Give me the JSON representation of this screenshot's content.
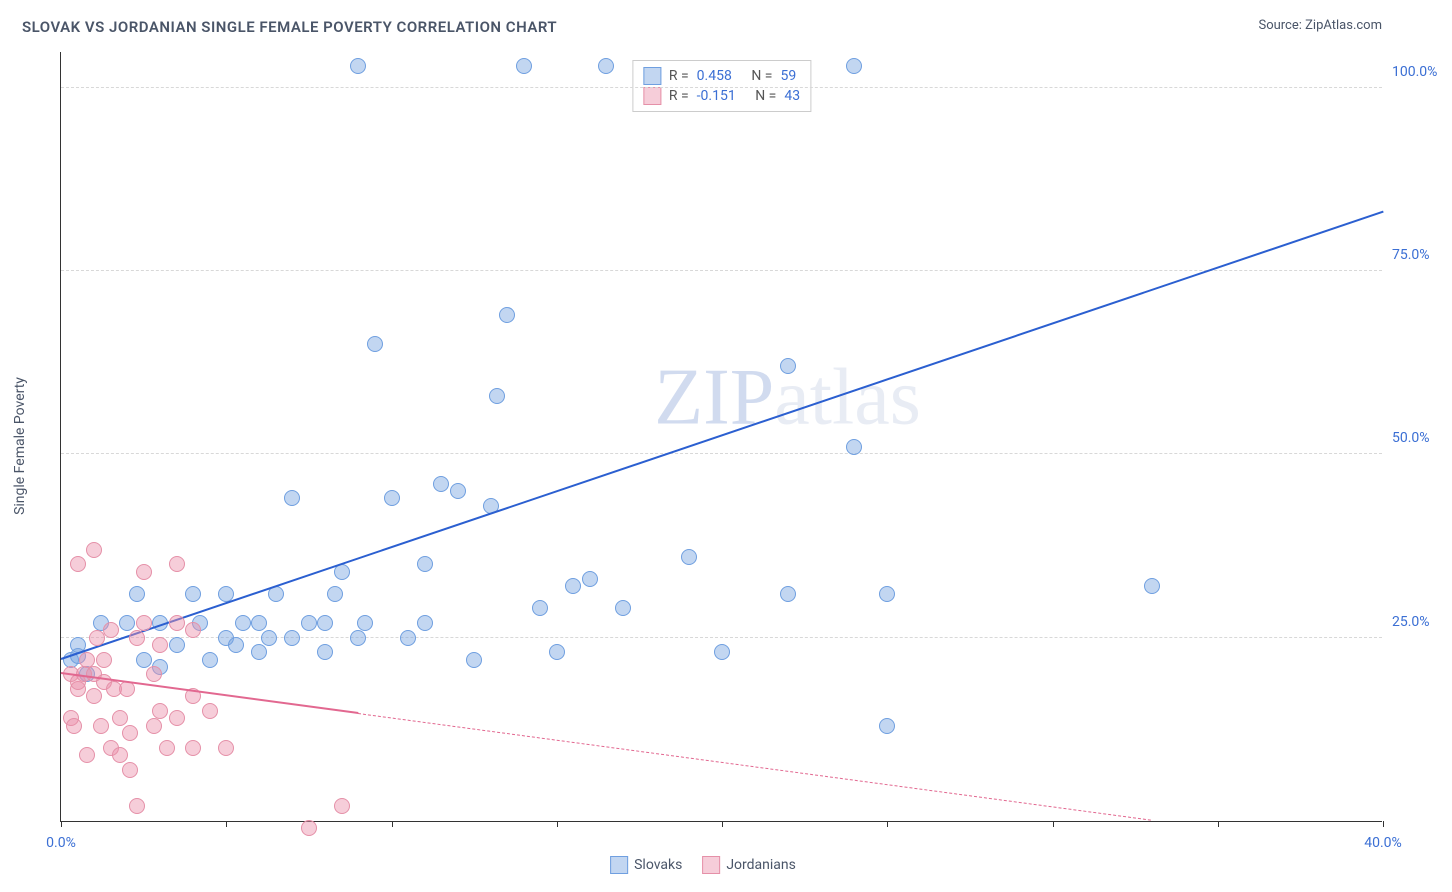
{
  "title": "SLOVAK VS JORDANIAN SINGLE FEMALE POVERTY CORRELATION CHART",
  "source_label": "Source: ",
  "source_value": "ZipAtlas.com",
  "y_axis_title": "Single Female Poverty",
  "watermark_a": "ZIP",
  "watermark_b": "atlas",
  "chart": {
    "type": "scatter",
    "xlim": [
      0,
      40
    ],
    "ylim": [
      0,
      105
    ],
    "x_ticks_major": [
      0,
      40
    ],
    "x_ticks_minor": [
      5,
      10,
      15,
      20,
      25,
      30,
      35
    ],
    "x_tick_labels": {
      "0": "0.0%",
      "40": "40.0%"
    },
    "y_ticks": [
      25,
      50,
      75,
      100
    ],
    "y_tick_labels": {
      "25": "25.0%",
      "50": "50.0%",
      "75": "75.0%",
      "100": "100.0%"
    },
    "grid_color": "#d8d8d8",
    "background_color": "#ffffff",
    "axis_color": "#333333",
    "point_radius": 8,
    "series": [
      {
        "name": "Slovaks",
        "color_fill": "rgba(120,165,225,0.45)",
        "color_stroke": "#6f9fe0",
        "trend_color": "#2b5fd0",
        "trend_start": {
          "x": 0,
          "y": 22
        },
        "trend_end": {
          "x": 40,
          "y": 83
        },
        "trend_dashed_from": null,
        "R_label": "R = ",
        "R": "0.458",
        "N_label": "N = ",
        "N": "59",
        "points": [
          {
            "x": 0.3,
            "y": 22
          },
          {
            "x": 0.5,
            "y": 22.5
          },
          {
            "x": 0.5,
            "y": 24
          },
          {
            "x": 0.8,
            "y": 20
          },
          {
            "x": 1.2,
            "y": 27
          },
          {
            "x": 2.0,
            "y": 27
          },
          {
            "x": 2.3,
            "y": 31
          },
          {
            "x": 2.5,
            "y": 22
          },
          {
            "x": 3.0,
            "y": 21
          },
          {
            "x": 3.0,
            "y": 27
          },
          {
            "x": 3.5,
            "y": 24
          },
          {
            "x": 4.0,
            "y": 31
          },
          {
            "x": 4.2,
            "y": 27
          },
          {
            "x": 4.5,
            "y": 22
          },
          {
            "x": 5.0,
            "y": 25
          },
          {
            "x": 5.0,
            "y": 31
          },
          {
            "x": 5.3,
            "y": 24
          },
          {
            "x": 5.5,
            "y": 27
          },
          {
            "x": 6.0,
            "y": 23
          },
          {
            "x": 6.0,
            "y": 27
          },
          {
            "x": 6.3,
            "y": 25
          },
          {
            "x": 6.5,
            "y": 31
          },
          {
            "x": 7.0,
            "y": 44
          },
          {
            "x": 7.0,
            "y": 25
          },
          {
            "x": 7.5,
            "y": 27
          },
          {
            "x": 8.0,
            "y": 23
          },
          {
            "x": 8.0,
            "y": 27
          },
          {
            "x": 8.3,
            "y": 31
          },
          {
            "x": 8.5,
            "y": 34
          },
          {
            "x": 9.0,
            "y": 103
          },
          {
            "x": 9.0,
            "y": 25
          },
          {
            "x": 9.2,
            "y": 27
          },
          {
            "x": 9.5,
            "y": 65
          },
          {
            "x": 10.0,
            "y": 44
          },
          {
            "x": 10.5,
            "y": 25
          },
          {
            "x": 11.0,
            "y": 27
          },
          {
            "x": 11.0,
            "y": 35
          },
          {
            "x": 11.5,
            "y": 46
          },
          {
            "x": 12.0,
            "y": 45
          },
          {
            "x": 12.5,
            "y": 22
          },
          {
            "x": 13.0,
            "y": 43
          },
          {
            "x": 13.2,
            "y": 58
          },
          {
            "x": 13.5,
            "y": 69
          },
          {
            "x": 14.0,
            "y": 103
          },
          {
            "x": 14.5,
            "y": 29
          },
          {
            "x": 15.0,
            "y": 23
          },
          {
            "x": 15.5,
            "y": 32
          },
          {
            "x": 16.0,
            "y": 33
          },
          {
            "x": 16.5,
            "y": 103
          },
          {
            "x": 17.0,
            "y": 29
          },
          {
            "x": 19.0,
            "y": 36
          },
          {
            "x": 20.0,
            "y": 23
          },
          {
            "x": 22.0,
            "y": 62
          },
          {
            "x": 22.0,
            "y": 31
          },
          {
            "x": 24.0,
            "y": 51
          },
          {
            "x": 24.0,
            "y": 103
          },
          {
            "x": 25.0,
            "y": 13
          },
          {
            "x": 25.0,
            "y": 31
          },
          {
            "x": 33.0,
            "y": 32
          }
        ]
      },
      {
        "name": "Jordanians",
        "color_fill": "rgba(235,145,170,0.45)",
        "color_stroke": "#e590a8",
        "trend_color": "#e26890",
        "trend_start": {
          "x": 0,
          "y": 20
        },
        "trend_end": {
          "x": 33,
          "y": 0
        },
        "trend_dashed_from": 9,
        "R_label": "R = ",
        "R": "-0.151",
        "N_label": "N = ",
        "N": "43",
        "points": [
          {
            "x": 0.3,
            "y": 20
          },
          {
            "x": 0.3,
            "y": 14
          },
          {
            "x": 0.4,
            "y": 13
          },
          {
            "x": 0.5,
            "y": 18
          },
          {
            "x": 0.5,
            "y": 19
          },
          {
            "x": 0.5,
            "y": 35
          },
          {
            "x": 0.7,
            "y": 20
          },
          {
            "x": 0.8,
            "y": 9
          },
          {
            "x": 0.8,
            "y": 22
          },
          {
            "x": 1.0,
            "y": 37
          },
          {
            "x": 1.0,
            "y": 20
          },
          {
            "x": 1.0,
            "y": 17
          },
          {
            "x": 1.1,
            "y": 25
          },
          {
            "x": 1.2,
            "y": 13
          },
          {
            "x": 1.3,
            "y": 22
          },
          {
            "x": 1.3,
            "y": 19
          },
          {
            "x": 1.5,
            "y": 26
          },
          {
            "x": 1.5,
            "y": 10
          },
          {
            "x": 1.6,
            "y": 18
          },
          {
            "x": 1.8,
            "y": 14
          },
          {
            "x": 1.8,
            "y": 9
          },
          {
            "x": 2.0,
            "y": 18
          },
          {
            "x": 2.1,
            "y": 12
          },
          {
            "x": 2.1,
            "y": 7
          },
          {
            "x": 2.3,
            "y": 2
          },
          {
            "x": 2.3,
            "y": 25
          },
          {
            "x": 2.5,
            "y": 27
          },
          {
            "x": 2.5,
            "y": 34
          },
          {
            "x": 2.8,
            "y": 13
          },
          {
            "x": 2.8,
            "y": 20
          },
          {
            "x": 3.0,
            "y": 15
          },
          {
            "x": 3.0,
            "y": 24
          },
          {
            "x": 3.2,
            "y": 10
          },
          {
            "x": 3.5,
            "y": 27
          },
          {
            "x": 3.5,
            "y": 14
          },
          {
            "x": 3.5,
            "y": 35
          },
          {
            "x": 4.0,
            "y": 26
          },
          {
            "x": 4.0,
            "y": 17
          },
          {
            "x": 4.0,
            "y": 10
          },
          {
            "x": 4.5,
            "y": 15
          },
          {
            "x": 5.0,
            "y": 10
          },
          {
            "x": 7.5,
            "y": -1
          },
          {
            "x": 8.5,
            "y": 2
          }
        ]
      }
    ]
  },
  "legend_bottom": [
    {
      "swatch_fill": "rgba(120,165,225,0.45)",
      "swatch_stroke": "#6f9fe0",
      "label": "Slovaks"
    },
    {
      "swatch_fill": "rgba(235,145,170,0.45)",
      "swatch_stroke": "#e590a8",
      "label": "Jordanians"
    }
  ]
}
